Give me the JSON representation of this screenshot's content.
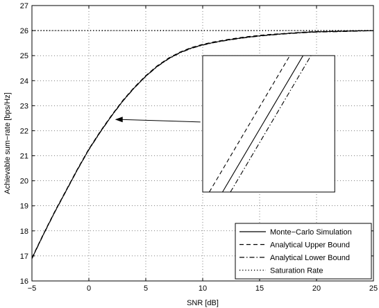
{
  "chart_data": {
    "type": "line",
    "xlabel": "SNR [dB]",
    "ylabel": "Achievable sum−rate [bps/Hz]",
    "xlim": [
      -5,
      25
    ],
    "ylim": [
      16,
      27
    ],
    "xticks": [
      "−5",
      "0",
      "5",
      "10",
      "15",
      "20",
      "25"
    ],
    "yticks": [
      "16",
      "17",
      "18",
      "19",
      "20",
      "21",
      "22",
      "23",
      "24",
      "25",
      "26",
      "27"
    ],
    "grid": true,
    "legend_position": "bottom-right",
    "x": [
      -5,
      -4,
      -3,
      -2,
      -1,
      0,
      1,
      2,
      3,
      4,
      5,
      6,
      7,
      8,
      9,
      10,
      11,
      12,
      13,
      14,
      15,
      16,
      17,
      18,
      19,
      20,
      21,
      22,
      23,
      24,
      25
    ],
    "series": [
      {
        "name": "Monte−Carlo Simulation",
        "line_style": "solid",
        "y": [
          16.9,
          17.85,
          18.75,
          19.6,
          20.45,
          21.25,
          21.95,
          22.6,
          23.2,
          23.72,
          24.18,
          24.57,
          24.88,
          25.12,
          25.3,
          25.43,
          25.53,
          25.61,
          25.68,
          25.74,
          25.79,
          25.83,
          25.87,
          25.9,
          25.93,
          25.95,
          25.96,
          25.97,
          25.98,
          25.99,
          26.0
        ]
      },
      {
        "name": "Analytical Upper Bound",
        "line_style": "dashed",
        "y": [
          16.92,
          17.87,
          18.77,
          19.62,
          20.47,
          21.27,
          21.97,
          22.62,
          23.22,
          23.74,
          24.2,
          24.59,
          24.9,
          25.14,
          25.32,
          25.45,
          25.55,
          25.63,
          25.7,
          25.76,
          25.81,
          25.85,
          25.88,
          25.91,
          25.94,
          25.96,
          25.97,
          25.98,
          25.99,
          25.995,
          26.0
        ]
      },
      {
        "name": "Analytical Lower Bound",
        "line_style": "dashdot",
        "y": [
          16.89,
          17.84,
          18.74,
          19.59,
          20.44,
          21.24,
          21.94,
          22.59,
          23.19,
          23.71,
          24.17,
          24.56,
          24.87,
          25.11,
          25.29,
          25.42,
          25.52,
          25.6,
          25.67,
          25.73,
          25.78,
          25.82,
          25.86,
          25.89,
          25.92,
          25.94,
          25.95,
          25.96,
          25.97,
          25.985,
          25.995
        ]
      },
      {
        "name": "Saturation Rate",
        "line_style": "dotted",
        "y": [
          26,
          26,
          26,
          26,
          26,
          26,
          26,
          26,
          26,
          26,
          26,
          26,
          26,
          26,
          26,
          26,
          26,
          26,
          26,
          26,
          26,
          26,
          26,
          26,
          26,
          26,
          26,
          26,
          26,
          26,
          26
        ]
      }
    ],
    "inset": {
      "x_range": [
        10,
        21.6
      ],
      "y_range": [
        19.55,
        25.0
      ]
    },
    "arrow": {
      "from": [
        9.8,
        22.35
      ],
      "to": [
        2.3,
        22.45
      ]
    }
  }
}
